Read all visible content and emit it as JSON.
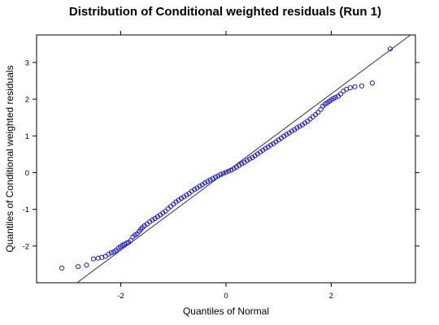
{
  "chart_data": {
    "type": "scatter",
    "title": "Distribution of Conditional weighted residuals (Run 1)",
    "xlabel": "Quantiles of Normal",
    "ylabel": "Quantiles of Conditional weighted residuals",
    "xlim": [
      -3.6,
      3.6
    ],
    "ylim": [
      -3.0,
      3.75
    ],
    "x_ticks": [
      -2,
      0,
      2
    ],
    "x_tick_labels": [
      "-2",
      "0",
      "2"
    ],
    "y_ticks": [
      -2,
      -1,
      0,
      1,
      2,
      3
    ],
    "y_tick_labels": [
      "-2",
      "-1",
      "0",
      "1",
      "2",
      "3"
    ],
    "grid": false,
    "series": [
      {
        "marker": "open-circle",
        "color": "#0000ff",
        "x": [
          -3.12,
          -2.81,
          -2.65,
          -2.52,
          -2.43,
          -2.36,
          -2.29,
          -2.23,
          -2.18,
          -2.13,
          -2.09,
          -2.05,
          -2.01,
          -1.97,
          -1.93,
          -1.89,
          -1.85,
          -1.81,
          -1.77,
          -1.73,
          -1.69,
          -1.65,
          -1.62,
          -1.59,
          -1.55,
          -1.5,
          -1.45,
          -1.4,
          -1.35,
          -1.3,
          -1.25,
          -1.2,
          -1.15,
          -1.1,
          -1.05,
          -1.0,
          -0.95,
          -0.9,
          -0.85,
          -0.8,
          -0.75,
          -0.7,
          -0.65,
          -0.6,
          -0.55,
          -0.5,
          -0.45,
          -0.4,
          -0.35,
          -0.3,
          -0.25,
          -0.2,
          -0.15,
          -0.1,
          -0.05,
          0.0,
          0.05,
          0.1,
          0.15,
          0.2,
          0.25,
          0.3,
          0.35,
          0.4,
          0.45,
          0.5,
          0.55,
          0.6,
          0.65,
          0.7,
          0.75,
          0.8,
          0.85,
          0.9,
          0.95,
          1.0,
          1.05,
          1.1,
          1.15,
          1.2,
          1.25,
          1.3,
          1.35,
          1.4,
          1.45,
          1.5,
          1.55,
          1.6,
          1.65,
          1.7,
          1.75,
          1.8,
          1.84,
          1.88,
          1.92,
          1.96,
          2.0,
          2.04,
          2.08,
          2.13,
          2.18,
          2.23,
          2.29,
          2.36,
          2.45,
          2.58,
          2.78,
          3.12
        ],
        "y": [
          -2.6,
          -2.56,
          -2.52,
          -2.35,
          -2.33,
          -2.31,
          -2.28,
          -2.22,
          -2.18,
          -2.16,
          -2.12,
          -2.06,
          -2.02,
          -1.98,
          -1.95,
          -1.92,
          -1.9,
          -1.85,
          -1.75,
          -1.7,
          -1.67,
          -1.6,
          -1.55,
          -1.5,
          -1.45,
          -1.4,
          -1.34,
          -1.29,
          -1.25,
          -1.2,
          -1.15,
          -1.1,
          -1.05,
          -0.98,
          -0.92,
          -0.86,
          -0.8,
          -0.75,
          -0.7,
          -0.66,
          -0.61,
          -0.57,
          -0.51,
          -0.46,
          -0.42,
          -0.37,
          -0.33,
          -0.28,
          -0.24,
          -0.2,
          -0.16,
          -0.12,
          -0.09,
          -0.05,
          -0.02,
          0.01,
          0.04,
          0.07,
          0.11,
          0.15,
          0.2,
          0.24,
          0.28,
          0.33,
          0.37,
          0.41,
          0.46,
          0.51,
          0.56,
          0.61,
          0.66,
          0.7,
          0.75,
          0.79,
          0.84,
          0.89,
          0.94,
          0.99,
          1.04,
          1.08,
          1.13,
          1.17,
          1.22,
          1.26,
          1.3,
          1.35,
          1.4,
          1.46,
          1.52,
          1.58,
          1.64,
          1.72,
          1.81,
          1.86,
          1.9,
          1.94,
          1.98,
          2.02,
          2.05,
          2.08,
          2.14,
          2.22,
          2.27,
          2.31,
          2.34,
          2.36,
          2.44,
          3.37
        ]
      }
    ],
    "reference_line": {
      "color": "#333333",
      "slope": 1.065,
      "intercept": 0.015
    }
  }
}
